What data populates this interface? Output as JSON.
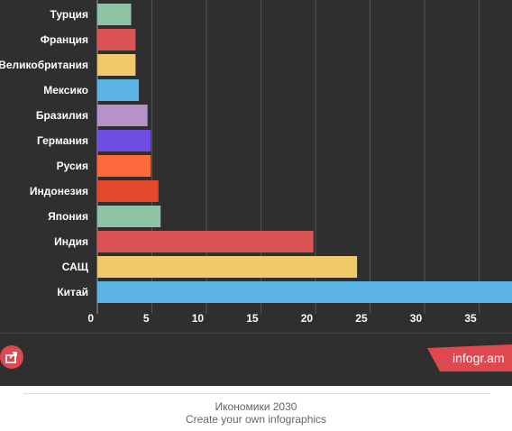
{
  "chart_data": {
    "type": "bar",
    "orientation": "horizontal",
    "categories": [
      "Турция",
      "Франция",
      "Великобритания",
      "Мексико",
      "Бразилия",
      "Германия",
      "Русия",
      "Индонезия",
      "Япония",
      "Индия",
      "САЩ",
      "Китай"
    ],
    "values": [
      3.1,
      3.5,
      3.5,
      3.8,
      4.6,
      4.9,
      4.9,
      5.6,
      5.8,
      19.8,
      23.8,
      39
    ],
    "colors": [
      "#8ec3a7",
      "#dc5356",
      "#f0c96a",
      "#5cb4e5",
      "#b592c8",
      "#6e4ee0",
      "#ff6a3d",
      "#e2492b",
      "#8ec3a7",
      "#dc5356",
      "#f0c96a",
      "#5cb4e5"
    ],
    "xticks": [
      "0",
      "5",
      "10",
      "15",
      "20",
      "25",
      "30",
      "35"
    ],
    "xlim": [
      0,
      38
    ],
    "grid": true
  },
  "footer": {
    "title": "Икономики 2030",
    "cta": "Create your own infographics"
  },
  "brand": {
    "label": "infogr.am",
    "color": "#e0484f"
  },
  "icons": {
    "share": "share-icon"
  }
}
